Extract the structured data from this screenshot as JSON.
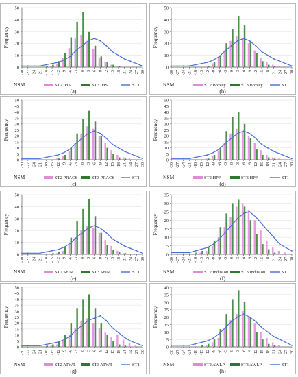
{
  "figure": {
    "x_ticks": [
      "-30",
      "-27",
      "-24",
      "-21",
      "-18",
      "-15",
      "-12",
      "-9",
      "-6",
      "-3",
      "0",
      "3",
      "6",
      "9",
      "12",
      "15",
      "18",
      "21",
      "24",
      "27",
      "30"
    ],
    "xlabel": "NSM",
    "ylabel": "Frequency"
  },
  "colors": {
    "st2": "#e08ad8",
    "st3": "#2d7a2d",
    "st1": "#4a6fd6",
    "axis": "#555555",
    "grid": "#dddddd"
  },
  "chart_data": [
    {
      "type": "bar",
      "caption": "(a)",
      "legend": [
        "ST2 IHS",
        "ST3 IHS",
        "ST1"
      ],
      "ylim": [
        0,
        50
      ],
      "yticks": [
        0,
        10,
        20,
        30,
        40,
        50
      ],
      "x": [
        -30,
        -27,
        -24,
        -21,
        -18,
        -15,
        -12,
        -9,
        -6,
        -3,
        0,
        3,
        6,
        9,
        12,
        15,
        18,
        21,
        24,
        27,
        30
      ],
      "st2": [
        0,
        0,
        0,
        0,
        0,
        1,
        3,
        8,
        16,
        24,
        27,
        22,
        15,
        8,
        4,
        2,
        1,
        0,
        0,
        0,
        0
      ],
      "st3": [
        0,
        0,
        0,
        0,
        1,
        2,
        5,
        12,
        25,
        38,
        46,
        30,
        18,
        9,
        4,
        2,
        1,
        0,
        0,
        0,
        0
      ],
      "st1": [
        1,
        1,
        1,
        1,
        2,
        3,
        4,
        6,
        9,
        14,
        18,
        22,
        24,
        22,
        18,
        13,
        10,
        7,
        5,
        3,
        1
      ]
    },
    {
      "type": "bar",
      "caption": "(b)",
      "legend": [
        "ST2 Brovey",
        "ST3 Brovey",
        "ST1"
      ],
      "ylim": [
        0,
        50
      ],
      "yticks": [
        0,
        10,
        20,
        30,
        40,
        50
      ],
      "x": [
        -30,
        -27,
        -24,
        -21,
        -18,
        -15,
        -12,
        -9,
        -6,
        -3,
        0,
        3,
        6,
        9,
        12,
        15,
        18,
        21,
        24,
        27,
        30
      ],
      "st2": [
        0,
        0,
        0,
        0,
        0,
        0,
        1,
        3,
        8,
        14,
        22,
        26,
        24,
        20,
        14,
        8,
        4,
        2,
        1,
        0,
        0
      ],
      "st3": [
        0,
        0,
        0,
        0,
        0,
        0,
        1,
        4,
        10,
        20,
        32,
        43,
        35,
        22,
        12,
        5,
        2,
        1,
        0,
        0,
        0
      ],
      "st1": [
        1,
        1,
        1,
        1,
        2,
        3,
        4,
        6,
        9,
        14,
        18,
        22,
        24,
        22,
        18,
        13,
        10,
        7,
        5,
        3,
        1
      ]
    },
    {
      "type": "bar",
      "caption": "(c)",
      "legend": [
        "ST2 PRACS",
        "ST3 PRACS",
        "ST1"
      ],
      "ylim": [
        0,
        50
      ],
      "yticks": [
        0,
        5,
        10,
        15,
        20,
        25,
        30,
        35,
        40,
        45,
        50
      ],
      "x": [
        -30,
        -27,
        -24,
        -21,
        -18,
        -15,
        -12,
        -9,
        -6,
        -3,
        0,
        3,
        6,
        9,
        12,
        15,
        18,
        21,
        24,
        27,
        30
      ],
      "st2": [
        0,
        0,
        0,
        0,
        0,
        0,
        1,
        3,
        7,
        14,
        22,
        28,
        26,
        20,
        14,
        8,
        4,
        2,
        1,
        0,
        0
      ],
      "st3": [
        0,
        0,
        0,
        0,
        0,
        0,
        1,
        4,
        10,
        22,
        34,
        41,
        32,
        20,
        10,
        5,
        2,
        1,
        0,
        0,
        0
      ],
      "st1": [
        1,
        1,
        1,
        1,
        2,
        3,
        4,
        6,
        9,
        14,
        18,
        22,
        24,
        22,
        18,
        13,
        10,
        7,
        5,
        3,
        1
      ]
    },
    {
      "type": "bar",
      "caption": "(d)",
      "legend": [
        "ST2 HPF",
        "ST3 HPF",
        "ST1"
      ],
      "ylim": [
        0,
        50
      ],
      "yticks": [
        0,
        5,
        10,
        15,
        20,
        25,
        30,
        35,
        40,
        45,
        50
      ],
      "x": [
        -30,
        -27,
        -24,
        -21,
        -18,
        -15,
        -12,
        -9,
        -6,
        -3,
        0,
        3,
        6,
        9,
        12,
        15,
        18,
        21,
        24,
        27,
        30
      ],
      "st2": [
        0,
        0,
        0,
        0,
        0,
        0,
        1,
        3,
        7,
        14,
        22,
        26,
        24,
        20,
        14,
        8,
        4,
        2,
        1,
        0,
        0
      ],
      "st3": [
        0,
        0,
        0,
        0,
        0,
        0,
        1,
        4,
        10,
        24,
        36,
        40,
        30,
        18,
        9,
        4,
        2,
        1,
        0,
        0,
        0
      ],
      "st1": [
        1,
        1,
        1,
        1,
        2,
        3,
        4,
        6,
        9,
        14,
        18,
        22,
        24,
        22,
        18,
        13,
        10,
        7,
        5,
        3,
        1
      ]
    },
    {
      "type": "bar",
      "caption": "(e)",
      "legend": [
        "ST2 SFIM",
        "ST3 SFIM",
        "ST1"
      ],
      "ylim": [
        0,
        50
      ],
      "yticks": [
        0,
        10,
        20,
        30,
        40,
        50
      ],
      "x": [
        -30,
        -27,
        -24,
        -21,
        -18,
        -15,
        -12,
        -9,
        -6,
        -3,
        0,
        3,
        6,
        9,
        12,
        15,
        18,
        21,
        24,
        27,
        30
      ],
      "st2": [
        0,
        0,
        0,
        0,
        0,
        0,
        1,
        3,
        8,
        14,
        20,
        24,
        22,
        18,
        12,
        7,
        3,
        1,
        0,
        0,
        0
      ],
      "st3": [
        0,
        0,
        0,
        0,
        0,
        1,
        2,
        6,
        14,
        28,
        38,
        46,
        32,
        18,
        8,
        4,
        2,
        1,
        0,
        0,
        0
      ],
      "st1": [
        1,
        1,
        1,
        1,
        2,
        3,
        4,
        6,
        9,
        14,
        18,
        22,
        24,
        22,
        18,
        13,
        10,
        7,
        5,
        3,
        1
      ]
    },
    {
      "type": "bar",
      "caption": "(f)",
      "legend": [
        "ST2 Indusion",
        "ST3 Indusion",
        "ST1"
      ],
      "ylim": [
        0,
        35
      ],
      "yticks": [
        0,
        5,
        10,
        15,
        20,
        25,
        30,
        35
      ],
      "x": [
        -30,
        -27,
        -24,
        -21,
        -18,
        -15,
        -12,
        -9,
        -6,
        -3,
        0,
        3,
        6,
        9,
        12,
        15,
        18,
        21,
        24,
        27,
        30
      ],
      "st2": [
        0,
        0,
        0,
        0,
        0,
        1,
        2,
        5,
        10,
        16,
        22,
        28,
        30,
        26,
        20,
        14,
        8,
        4,
        2,
        1,
        0
      ],
      "st3": [
        0,
        0,
        0,
        0,
        1,
        2,
        4,
        8,
        16,
        24,
        30,
        32,
        28,
        20,
        12,
        6,
        3,
        1,
        0,
        0,
        0
      ],
      "st1": [
        1,
        1,
        1,
        1,
        2,
        3,
        4,
        6,
        9,
        13,
        17,
        21,
        24,
        25,
        22,
        18,
        14,
        10,
        6,
        4,
        2
      ]
    },
    {
      "type": "bar",
      "caption": "(g)",
      "legend": [
        "ST2 ATWT",
        "ST3 ATWT",
        "ST1"
      ],
      "ylim": [
        0,
        50
      ],
      "yticks": [
        0,
        5,
        10,
        15,
        20,
        25,
        30,
        35,
        40,
        45,
        50
      ],
      "x": [
        -30,
        -27,
        -24,
        -21,
        -18,
        -15,
        -12,
        -9,
        -6,
        -3,
        0,
        3,
        6,
        9,
        12,
        15,
        18,
        21,
        24,
        27,
        30
      ],
      "st2": [
        0,
        0,
        0,
        0,
        0,
        1,
        2,
        5,
        10,
        16,
        22,
        24,
        20,
        16,
        12,
        8,
        10,
        6,
        3,
        1,
        0
      ],
      "st3": [
        0,
        0,
        0,
        0,
        1,
        2,
        4,
        10,
        20,
        32,
        40,
        44,
        32,
        20,
        10,
        5,
        2,
        1,
        0,
        0,
        0
      ],
      "st1": [
        1,
        1,
        1,
        1,
        2,
        3,
        4,
        6,
        9,
        14,
        18,
        22,
        24,
        26,
        22,
        16,
        12,
        8,
        5,
        3,
        1
      ]
    },
    {
      "type": "bar",
      "caption": "(h)",
      "legend": [
        "ST2 AWLP",
        "ST3 AWLP",
        "ST1"
      ],
      "ylim": [
        0,
        40
      ],
      "yticks": [
        0,
        5,
        10,
        15,
        20,
        25,
        30,
        35,
        40
      ],
      "x": [
        -30,
        -27,
        -24,
        -21,
        -18,
        -15,
        -12,
        -9,
        -6,
        -3,
        0,
        3,
        6,
        9,
        12,
        15,
        18,
        21,
        24,
        27,
        30
      ],
      "st2": [
        0,
        0,
        0,
        0,
        0,
        0,
        1,
        3,
        6,
        12,
        18,
        22,
        24,
        20,
        16,
        10,
        6,
        3,
        1,
        0,
        0
      ],
      "st3": [
        0,
        0,
        0,
        0,
        0,
        1,
        2,
        5,
        12,
        22,
        32,
        38,
        30,
        20,
        10,
        5,
        2,
        1,
        0,
        0,
        0
      ],
      "st1": [
        1,
        1,
        1,
        1,
        2,
        3,
        4,
        6,
        9,
        13,
        17,
        20,
        22,
        20,
        17,
        13,
        10,
        7,
        5,
        3,
        1
      ]
    }
  ]
}
